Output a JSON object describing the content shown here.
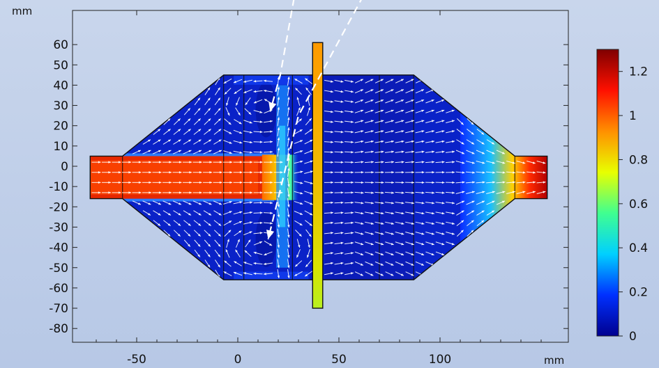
{
  "chart_data": {
    "type": "heatmap",
    "title": "",
    "x_unit": "mm",
    "y_unit": "mm",
    "xlim": [
      -75,
      150
    ],
    "ylim": [
      -87,
      72
    ],
    "x_ticks": [
      -50,
      0,
      50,
      100
    ],
    "y_ticks": [
      60,
      50,
      40,
      30,
      20,
      10,
      0,
      -10,
      -20,
      -30,
      -40,
      -50,
      -60,
      -70,
      -80
    ],
    "grid": false,
    "colorbar": {
      "min": 0,
      "max": 1.3,
      "ticks": [
        1.2,
        1,
        0.8,
        0.6,
        0.4,
        0.2,
        0
      ],
      "colormap": [
        "#00008f",
        "#0030ff",
        "#00d0ff",
        "#40ff90",
        "#e8ff00",
        "#ff9000",
        "#ff1000",
        "#7f0000"
      ]
    },
    "geometry": {
      "inlet_pipe": {
        "x": [
          -73,
          -57
        ],
        "y": [
          -16,
          5
        ]
      },
      "left_cone": {
        "x": [
          -57,
          -7
        ],
        "y_outer": [
          -16,
          5
        ],
        "y_inner": [
          -56,
          45
        ]
      },
      "left_chamber": {
        "x": [
          -7,
          37
        ],
        "y": [
          -56,
          45
        ]
      },
      "filter_plate": {
        "x": [
          37,
          42
        ],
        "y": [
          -70,
          61
        ]
      },
      "right_chamber": {
        "x": [
          43,
          87
        ],
        "y": [
          -56,
          45
        ]
      },
      "right_cone": {
        "x": [
          87,
          137
        ],
        "y_inner": [
          -56,
          45
        ],
        "y_outer": [
          -16,
          5
        ]
      },
      "outlet_pipe": {
        "x": [
          137,
          153
        ],
        "y": [
          -16,
          5
        ]
      },
      "inner_walls_x": [
        -57,
        -7,
        3,
        27,
        70,
        87,
        137
      ]
    },
    "field_samples": [
      {
        "region": "inlet jet core",
        "x": -30,
        "y": -5,
        "value": 1.1
      },
      {
        "region": "jet stagnation",
        "x": 22,
        "y": -5,
        "value": 0.7
      },
      {
        "region": "recirculation zones",
        "x": 15,
        "y": 30,
        "value": 0.2
      },
      {
        "region": "right chamber",
        "x": 65,
        "y": 0,
        "value": 0.1
      },
      {
        "region": "outlet pipe",
        "x": 145,
        "y": -5,
        "value": 1.25
      },
      {
        "region": "filter plate",
        "x": 39.5,
        "y": 20,
        "value": 0.95
      }
    ],
    "annotations": [
      {
        "type": "dashed-streamline",
        "points": [
          [
            30,
            95
          ],
          [
            21,
            45
          ],
          [
            16,
            27
          ]
        ]
      },
      {
        "type": "dashed-streamline",
        "points": [
          [
            68,
            95
          ],
          [
            30,
            25
          ],
          [
            15,
            -36
          ]
        ]
      }
    ]
  }
}
